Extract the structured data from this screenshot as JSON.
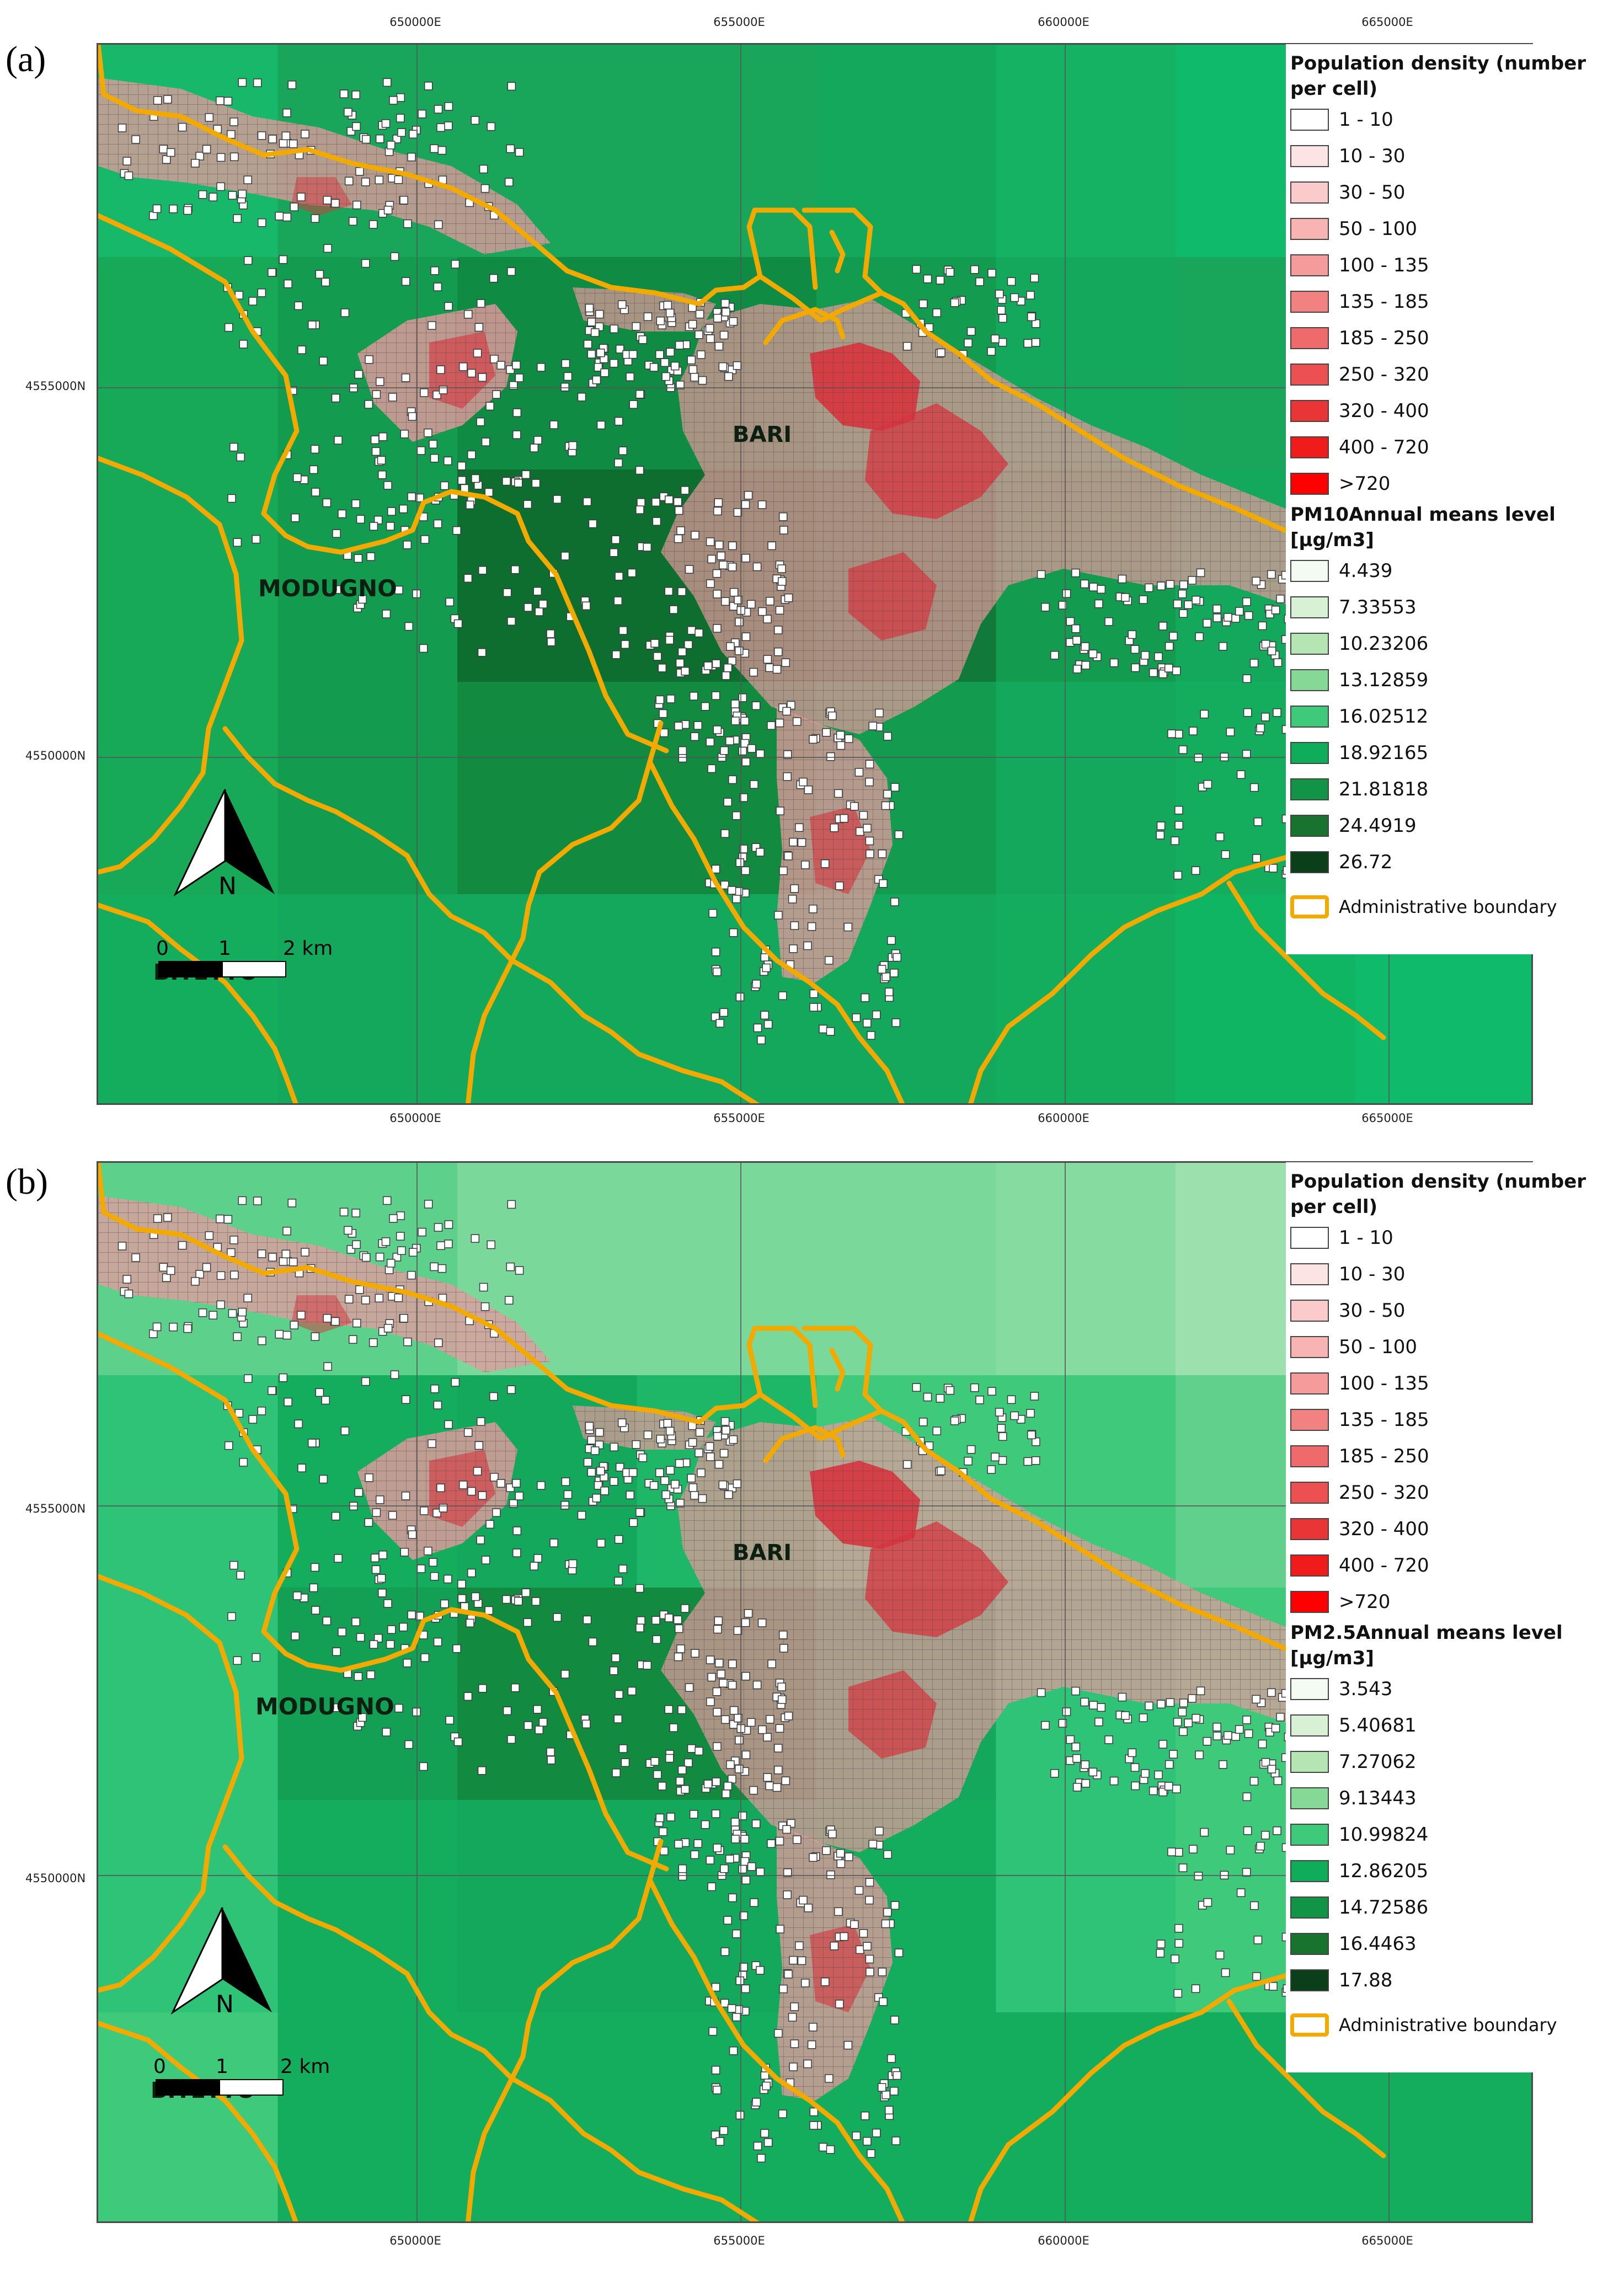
{
  "colors": {
    "boundary": "#f2a900",
    "population_block": "#e89aa0",
    "population_dense": "#d7343e",
    "grid_line": "#555555"
  },
  "panels": [
    {
      "id": "a",
      "label": "(a)",
      "x_ticks": [
        "650000E",
        "655000E",
        "660000E",
        "665000E"
      ],
      "y_ticks": [
        "4555000N",
        "4550000N"
      ],
      "towns": [
        "BARI",
        "MODUGNO",
        "BITETTO"
      ],
      "north_label": "N",
      "scale_bar": {
        "labels": [
          "0",
          "1",
          "2 km"
        ]
      },
      "legend": {
        "population_title": "Population density (number per cell)",
        "population_classes": [
          {
            "label": "1 - 10",
            "color": "#ffffff"
          },
          {
            "label": "10 - 30",
            "color": "#fde4e4"
          },
          {
            "label": "30 - 50",
            "color": "#fbcaca"
          },
          {
            "label": "50 - 100",
            "color": "#f8b3b3"
          },
          {
            "label": "100 - 135",
            "color": "#f59b9b"
          },
          {
            "label": "135 - 185",
            "color": "#f28282"
          },
          {
            "label": "185 - 250",
            "color": "#ef6a6a"
          },
          {
            "label": "250 - 320",
            "color": "#ec5050"
          },
          {
            "label": "320 - 400",
            "color": "#e93535"
          },
          {
            "label": "400 - 720",
            "color": "#f01c1c"
          },
          {
            "label": ">720",
            "color": "#ff0000"
          }
        ],
        "pollutant_title": "PM10Annual means level [µg/m3]",
        "pollutant_classes": [
          {
            "label": "4.439",
            "color": "#f3fbf2"
          },
          {
            "label": "7.33553",
            "color": "#d8f1d5"
          },
          {
            "label": "10.23206",
            "color": "#b4e5b3"
          },
          {
            "label": "13.12859",
            "color": "#86d896"
          },
          {
            "label": "16.02512",
            "color": "#3fc97a"
          },
          {
            "label": "18.92165",
            "color": "#0fad5a"
          },
          {
            "label": "21.81818",
            "color": "#129446"
          },
          {
            "label": "24.4919",
            "color": "#18732f"
          },
          {
            "label": "26.72",
            "color": "#0b3f1a"
          }
        ],
        "boundary_label": "Administrative boundary"
      },
      "background_rows": [
        [
          "#18b86a",
          "#1aa65a",
          "#1aa65a",
          "#1aa65a",
          "#14a85c",
          "#14b262",
          "#0fbb6a",
          "#42c97d"
        ],
        [
          "#17a858",
          "#139b4f",
          "#0f8b43",
          "#0f8b43",
          "#139b4f",
          "#14a85c",
          "#1aa65a",
          "#0fbb6a"
        ],
        [
          "#17a858",
          "#139b4f",
          "#0e6e30",
          "#0e6e30",
          "#117a3a",
          "#139b4f",
          "#14a85c",
          "#0fbb6a"
        ],
        [
          "#17a858",
          "#139b4f",
          "#128a40",
          "#128a40",
          "#139b4f",
          "#14a85c",
          "#14ad5e",
          "#0fbb6a"
        ],
        [
          "#14ad5e",
          "#14a85c",
          "#14a85c",
          "#14a85c",
          "#14a85c",
          "#14ad5e",
          "#10b563",
          "#0fbb6a"
        ]
      ]
    },
    {
      "id": "b",
      "label": "(b)",
      "x_ticks": [
        "650000E",
        "655000E",
        "660000E",
        "665000E"
      ],
      "y_ticks": [
        "4555000N",
        "4550000N"
      ],
      "towns": [
        "BARI",
        "MODUGNO",
        "BITETTO"
      ],
      "north_label": "N",
      "scale_bar": {
        "labels": [
          "0",
          "1",
          "2 km"
        ]
      },
      "legend": {
        "population_title": "Population density (number per cell)",
        "population_classes": [
          {
            "label": "1 - 10",
            "color": "#ffffff"
          },
          {
            "label": "10 - 30",
            "color": "#fde4e4"
          },
          {
            "label": "30 - 50",
            "color": "#fbcaca"
          },
          {
            "label": "50 - 100",
            "color": "#f8b3b3"
          },
          {
            "label": "100 - 135",
            "color": "#f59b9b"
          },
          {
            "label": "135 - 185",
            "color": "#f28282"
          },
          {
            "label": "185 - 250",
            "color": "#ef6a6a"
          },
          {
            "label": "250 - 320",
            "color": "#ec5050"
          },
          {
            "label": "320 - 400",
            "color": "#e93535"
          },
          {
            "label": "400 - 720",
            "color": "#f01c1c"
          },
          {
            "label": ">720",
            "color": "#ff0000"
          }
        ],
        "pollutant_title": "PM2.5Annual means level [µg/m3]",
        "pollutant_classes": [
          {
            "label": "3.543",
            "color": "#f3fbf2"
          },
          {
            "label": "5.40681",
            "color": "#d8f1d5"
          },
          {
            "label": "7.27062",
            "color": "#b4e5b3"
          },
          {
            "label": "9.13443",
            "color": "#86d896"
          },
          {
            "label": "10.99824",
            "color": "#3fc97a"
          },
          {
            "label": "12.86205",
            "color": "#0fad5a"
          },
          {
            "label": "14.72586",
            "color": "#129446"
          },
          {
            "label": "16.4463",
            "color": "#18732f"
          },
          {
            "label": "17.88",
            "color": "#0b3f1a"
          }
        ],
        "boundary_label": "Administrative boundary"
      },
      "background_rows": [
        [
          "#5dd08c",
          "#5dd08c",
          "#7ad89a",
          "#7ad89a",
          "#7ad89a",
          "#86dba0",
          "#9be0ad",
          "#9be0ad"
        ],
        [
          "#2fc378",
          "#14ad5e",
          "#14a85c",
          "#1eb667",
          "#3fc97a",
          "#3fc97a",
          "#61d08d",
          "#61d08d"
        ],
        [
          "#2fc378",
          "#13a055",
          "#128a40",
          "#128a40",
          "#14a85c",
          "#2fc378",
          "#3fc97a",
          "#3fc97a"
        ],
        [
          "#2fc378",
          "#14ad5e",
          "#14a85c",
          "#14a85c",
          "#14ad5e",
          "#2fc378",
          "#3fc97a",
          "#3fc97a"
        ],
        [
          "#3fc97a",
          "#14ad5e",
          "#14ad5e",
          "#14ad5e",
          "#14ad5e",
          "#14ad5e",
          "#14ad5e",
          "#14ad5e"
        ]
      ]
    }
  ]
}
